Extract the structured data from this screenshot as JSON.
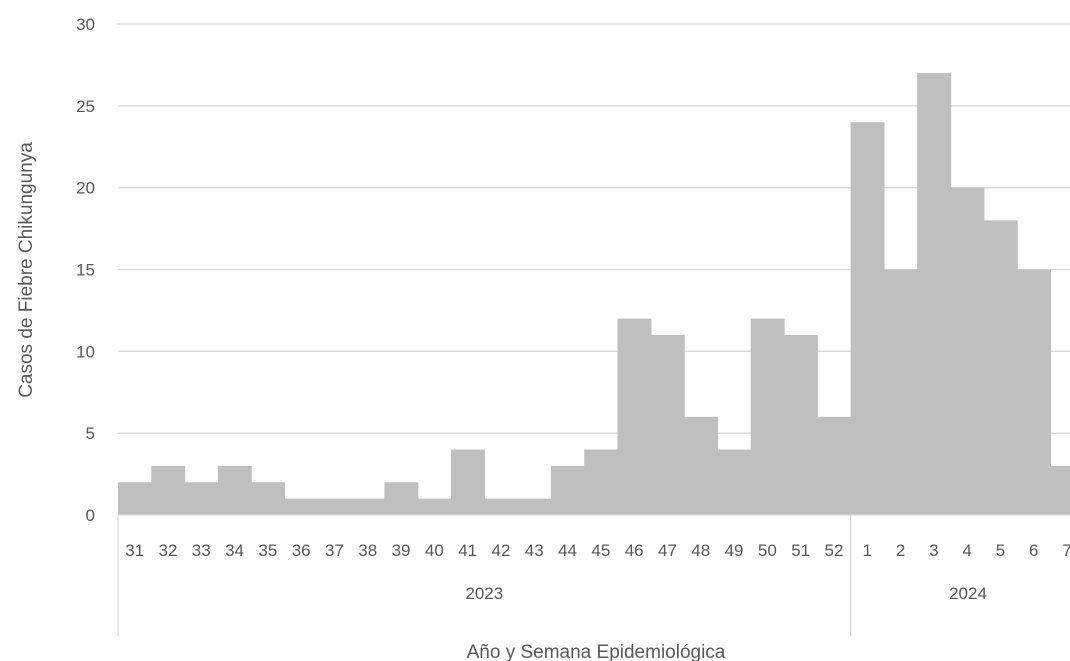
{
  "chart_data": {
    "type": "bar",
    "title": "",
    "xlabel": "Año y Semana Epidemiológica",
    "ylabel": "Casos de Fiebre Chikungunya",
    "ylim": [
      0,
      30
    ],
    "yticks": [
      0,
      5,
      10,
      15,
      20,
      25,
      30
    ],
    "grid": true,
    "bar_color": "#bfbfbf",
    "groups": [
      {
        "label": "2023",
        "start": 0,
        "count": 22
      },
      {
        "label": "2024",
        "start": 22,
        "count": 7
      }
    ],
    "categories": [
      "31",
      "32",
      "33",
      "34",
      "35",
      "36",
      "37",
      "38",
      "39",
      "40",
      "41",
      "42",
      "43",
      "44",
      "45",
      "46",
      "47",
      "48",
      "49",
      "50",
      "51",
      "52",
      "1",
      "2",
      "3",
      "4",
      "5",
      "6",
      "7"
    ],
    "values": [
      2,
      3,
      2,
      3,
      2,
      1,
      1,
      1,
      2,
      1,
      4,
      1,
      1,
      3,
      4,
      12,
      11,
      6,
      4,
      12,
      11,
      6,
      24,
      15,
      27,
      20,
      18,
      15,
      3
    ]
  }
}
